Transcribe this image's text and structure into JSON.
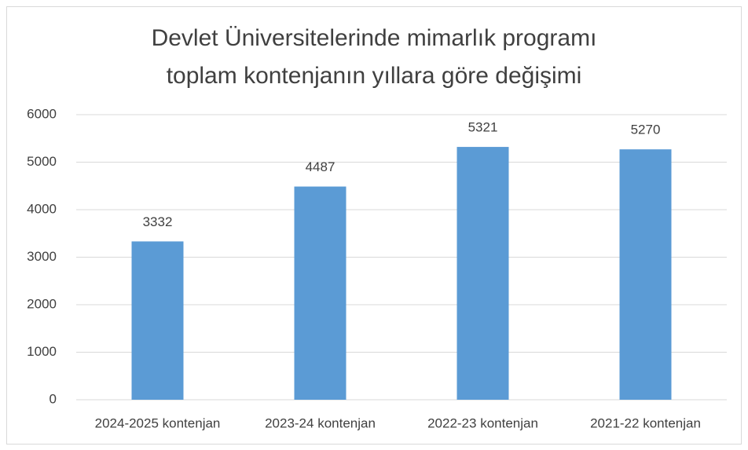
{
  "chart_data": {
    "type": "bar",
    "title": [
      "Devlet Üniversitelerinde mimarlık programı",
      "toplam kontenjanın yıllara göre değişimi"
    ],
    "categories": [
      "2024-2025 kontenjan",
      "2023-24 kontenjan",
      "2022-23 kontenjan",
      "2021-22 kontenjan"
    ],
    "values": [
      3332,
      4487,
      5321,
      5270
    ],
    "color": "#5b9bd5",
    "ylim": [
      0,
      6000
    ],
    "yticks": [
      0,
      1000,
      2000,
      3000,
      4000,
      5000,
      6000
    ],
    "grid": true
  }
}
